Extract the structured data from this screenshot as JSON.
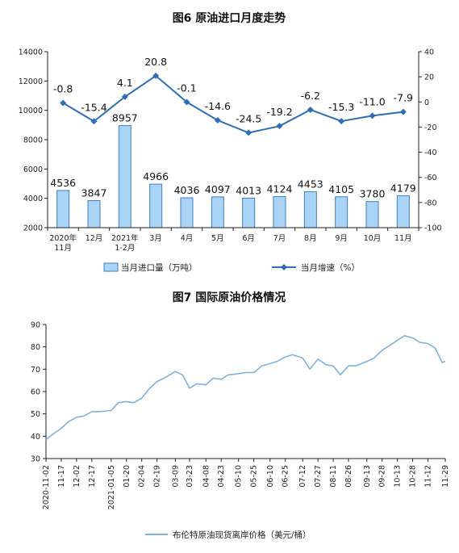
{
  "charts": [
    {
      "title": "图6  原油进口月度走势",
      "chart_data": {
        "type": "bar+line",
        "categories": [
          "2020年\n11月",
          "12月",
          "2021年\n1-2月",
          "3月",
          "4月",
          "5月",
          "6月",
          "7月",
          "8月",
          "9月",
          "10月",
          "11月"
        ],
        "series": [
          {
            "name": "当月进口量（万吨）",
            "type": "bar",
            "axis": "left",
            "values": [
              4536,
              3847,
              8957,
              4966,
              4036,
              4097,
              4013,
              4124,
              4453,
              4105,
              3780,
              4179
            ],
            "labels": [
              "4536",
              "3847",
              "8957",
              "4966",
              "4036",
              "4097",
              "4013",
              "4124",
              "4453",
              "4105",
              "3780",
              "4179"
            ]
          },
          {
            "name": "当月增速（%）",
            "type": "line",
            "axis": "right",
            "values": [
              -0.8,
              -15.4,
              4.1,
              20.8,
              -0.1,
              -14.6,
              -24.5,
              -19.2,
              -6.2,
              -15.3,
              -11.0,
              -7.9
            ],
            "labels": [
              "-0.8",
              "-15.4",
              "4.1",
              "20.8",
              "-0.1",
              "-14.6",
              "-24.5",
              "-19.2",
              "-6.2",
              "-15.3",
              "-11.0",
              "-7.9"
            ]
          }
        ],
        "ylim_left": [
          2000,
          14000
        ],
        "yticks_left": [
          "2000",
          "4000",
          "6000",
          "8000",
          "10000",
          "12000",
          "14000"
        ],
        "ylim_right": [
          -100,
          40
        ],
        "yticks_right": [
          "-100",
          "-80",
          "-60",
          "-40",
          "-20",
          "0",
          "20",
          "40"
        ],
        "grid": false,
        "legend": "bottom",
        "colors": {
          "bar_fill": "#a9d4f5",
          "bar_stroke": "#3f7fc1",
          "line": "#2e6fb5"
        }
      }
    },
    {
      "title": "图7  国际原油价格情况",
      "chart_data": {
        "type": "line",
        "series": [
          {
            "name": "布伦特原油现货离岸价格（美元/桶）",
            "x": [
              "2020-11-02",
              "2020-11-09",
              "2020-11-17",
              "2020-11-24",
              "2020-12-02",
              "2020-12-09",
              "2020-12-17",
              "2020-12-24",
              "2021-01-05",
              "2021-01-12",
              "2021-01-20",
              "2021-01-27",
              "2021-02-04",
              "2021-02-11",
              "2021-02-19",
              "2021-02-26",
              "2021-03-09",
              "2021-03-16",
              "2021-03-23",
              "2021-03-30",
              "2021-04-08",
              "2021-04-15",
              "2021-04-23",
              "2021-04-30",
              "2021-05-10",
              "2021-05-17",
              "2021-05-25",
              "2021-06-02",
              "2021-06-10",
              "2021-06-17",
              "2021-06-25",
              "2021-07-02",
              "2021-07-12",
              "2021-07-19",
              "2021-07-27",
              "2021-08-04",
              "2021-08-11",
              "2021-08-18",
              "2021-08-26",
              "2021-09-02",
              "2021-09-13",
              "2021-09-20",
              "2021-09-28",
              "2021-10-05",
              "2021-10-13",
              "2021-10-20",
              "2021-10-28",
              "2021-11-04",
              "2021-11-12",
              "2021-11-19",
              "2021-11-26",
              "2021-11-29"
            ],
            "y": [
              38.5,
              41.0,
              43.5,
              46.5,
              48.5,
              49.0,
              51.0,
              51.0,
              51.5,
              55.0,
              55.5,
              55.0,
              57.0,
              61.0,
              64.5,
              66.0,
              69.0,
              67.5,
              61.5,
              63.5,
              63.0,
              66.0,
              65.5,
              67.5,
              68.0,
              68.5,
              68.5,
              71.5,
              72.5,
              73.5,
              75.5,
              76.5,
              75.0,
              70.0,
              74.5,
              72.0,
              71.5,
              67.5,
              71.5,
              71.5,
              73.5,
              75.0,
              78.5,
              80.5,
              83.0,
              85.0,
              84.0,
              82.0,
              81.5,
              79.5,
              73.0,
              73.5
            ]
          }
        ],
        "xticks": [
          "2020-11-02",
          "11-17",
          "12-02",
          "12-17",
          "2021-01-05",
          "01-20",
          "02-04",
          "02-19",
          "03-09",
          "03-23",
          "04-08",
          "04-23",
          "05-10",
          "05-25",
          "06-10",
          "06-25",
          "07-12",
          "07-27",
          "08-11",
          "08-26",
          "09-13",
          "09-28",
          "10-13",
          "10-28",
          "11-12",
          "11-29"
        ],
        "ylim": [
          30,
          90
        ],
        "yticks": [
          "30",
          "40",
          "50",
          "60",
          "70",
          "80",
          "90"
        ],
        "grid": false,
        "legend": "bottom",
        "colors": {
          "line": "#7fb3dd"
        }
      }
    }
  ]
}
